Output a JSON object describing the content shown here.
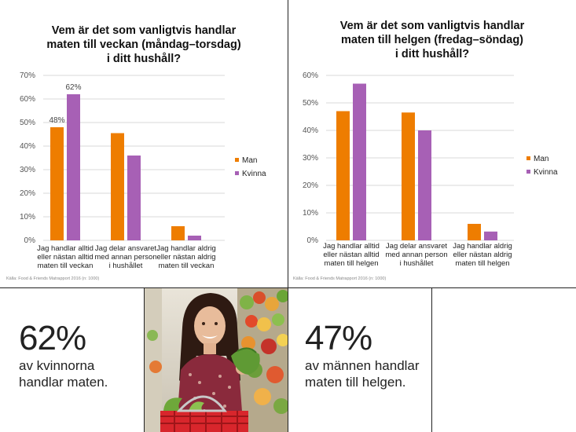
{
  "colors": {
    "man": "#EE7D00",
    "kvinna": "#A760B5",
    "grid": "#d9d9d9",
    "axis_text": "#555555"
  },
  "chart_data": [
    {
      "type": "bar",
      "title_lines": [
        "Vem är det som vanligtvis handlar",
        "maten till veckan (måndag–torsdag)",
        "i ditt hushåll?"
      ],
      "categories": [
        [
          "Jag handlar alltid",
          "eller nästan alltid",
          "maten till veckan"
        ],
        [
          "Jag delar ansvaret",
          "med annan person",
          "i hushållet"
        ],
        [
          "Jag handlar aldrig",
          "eller nästan aldrig",
          "maten till veckan"
        ]
      ],
      "series": [
        {
          "name": "Man",
          "values": [
            48,
            45.5,
            6
          ]
        },
        {
          "name": "Kvinna",
          "values": [
            62,
            36,
            2
          ]
        }
      ],
      "data_labels": [
        {
          "series": 0,
          "index": 0,
          "text": "48%"
        },
        {
          "series": 1,
          "index": 0,
          "text": "62%"
        }
      ],
      "yticks": [
        "0%",
        "10%",
        "20%",
        "30%",
        "40%",
        "50%",
        "60%",
        "70%"
      ],
      "ylim": [
        0,
        70
      ],
      "grid": true,
      "legend": "right",
      "source": "Källa: Food & Friends Matrapport 2016 (n: 1000)"
    },
    {
      "type": "bar",
      "title_lines": [
        "Vem är det som vanligtvis handlar",
        "maten till helgen (fredag–söndag)",
        "i ditt hushåll?"
      ],
      "categories": [
        [
          "Jag handlar alltid",
          "eller nästan alltid",
          "maten till helgen"
        ],
        [
          "Jag delar ansvaret",
          "med annan person",
          "i hushållet"
        ],
        [
          "Jag handlar aldrig",
          "eller nästan aldrig",
          "maten till helgen"
        ]
      ],
      "series": [
        {
          "name": "Man",
          "values": [
            47,
            46.5,
            6
          ]
        },
        {
          "name": "Kvinna",
          "values": [
            57,
            40,
            3.2
          ]
        }
      ],
      "data_labels": [],
      "yticks": [
        "0%",
        "10%",
        "20%",
        "30%",
        "40%",
        "50%",
        "60%"
      ],
      "ylim": [
        0,
        60
      ],
      "grid": true,
      "legend": "right",
      "source": "Källa: Food & Friends Matrapport 2016 (n: 1000)"
    }
  ],
  "stats": [
    {
      "value": "62%",
      "caption_lines": [
        "av kvinnorna",
        "handlar maten."
      ]
    },
    {
      "value": "47%",
      "caption_lines": [
        "av männen handlar",
        "maten till helgen."
      ]
    }
  ]
}
